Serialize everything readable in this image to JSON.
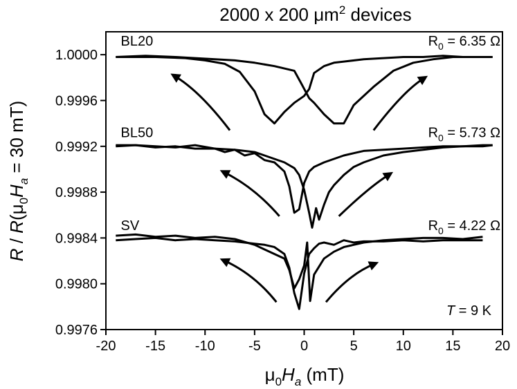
{
  "chart_data": {
    "type": "line",
    "title": "2000 x 200 μm",
    "title_superscript": "2",
    "title_suffix": " devices",
    "xlabel": "μ",
    "xlabel_sub": "0",
    "xlabel_italic": "H",
    "xlabel_italic_sub": "a",
    "xlabel_tail": " (mT)",
    "ylabel": "R / R(μ0Ha = 30 mT)",
    "xlim": [
      -20,
      20
    ],
    "ylim": [
      0.9976,
      1.0002
    ],
    "xticks": [
      -20,
      -15,
      -10,
      -5,
      0,
      5,
      10,
      15,
      20
    ],
    "yticks": [
      "0.9976",
      "0.9980",
      "0.9984",
      "0.9988",
      "0.9992",
      "0.9996",
      "1.0000"
    ],
    "grid": false,
    "labels": [
      {
        "text": "BL20",
        "x": -18.5,
        "y": 1.00008
      },
      {
        "text": "BL50",
        "x": -18.5,
        "y": 0.99928
      },
      {
        "text": "SV",
        "x": -18.5,
        "y": 0.99847
      }
    ],
    "r0_labels": [
      {
        "sub": "0",
        "value": " = 6.35 Ω",
        "x": 12.5,
        "y": 1.00008
      },
      {
        "sub": "0",
        "value": " = 5.73 Ω",
        "x": 12.5,
        "y": 0.99928
      },
      {
        "sub": "0",
        "value": " = 4.22 Ω",
        "x": 12.5,
        "y": 0.99847
      }
    ],
    "temperature_label": {
      "italic": "T",
      "text": " = 9 K"
    },
    "series": [
      {
        "x": [
          -19,
          -15,
          -12,
          -10,
          -8,
          -6.5,
          -5,
          -4,
          -3,
          -2,
          -1,
          0,
          0.5,
          1,
          2,
          3,
          4,
          6,
          8,
          10,
          12,
          14,
          16,
          18,
          19
        ],
        "y": [
          0.99998,
          0.99998,
          0.99997,
          0.99995,
          0.99992,
          0.99985,
          0.99968,
          0.99948,
          0.9994,
          0.9995,
          0.99958,
          0.99964,
          0.9997,
          0.99984,
          0.9999,
          0.99993,
          0.99994,
          0.99996,
          0.99997,
          0.99998,
          0.99998,
          0.99999,
          0.99998,
          0.99998,
          0.99998
        ]
      },
      {
        "x": [
          -19,
          -16,
          -13,
          -11,
          -9,
          -7,
          -5,
          -3,
          -1,
          -0.3,
          0.5,
          1,
          2,
          3,
          4,
          5,
          7,
          9,
          11,
          13,
          15,
          17,
          19
        ],
        "y": [
          0.99998,
          0.99999,
          0.99998,
          0.99997,
          0.99996,
          0.99995,
          0.99993,
          0.9999,
          0.99986,
          0.99975,
          0.99962,
          0.99958,
          0.99948,
          0.9994,
          0.9994,
          0.99956,
          0.99972,
          0.99986,
          0.99993,
          0.99996,
          0.99998,
          0.99998,
          0.99998
        ]
      },
      {
        "x": [
          -19,
          -17,
          -15,
          -13,
          -11,
          -9,
          -8,
          -7,
          -6,
          -5,
          -4,
          -3,
          -2,
          -1.5,
          -1,
          -0.5,
          0,
          0.5,
          1,
          2,
          3,
          4,
          5,
          6,
          8,
          10,
          12,
          14,
          16,
          18,
          19
        ],
        "y": [
          0.99921,
          0.99921,
          0.9992,
          0.99919,
          0.99921,
          0.99918,
          0.99915,
          0.99917,
          0.99912,
          0.99914,
          0.99908,
          0.99906,
          0.99898,
          0.99885,
          0.99862,
          0.99865,
          0.99888,
          0.99898,
          0.99902,
          0.99906,
          0.99909,
          0.99912,
          0.99914,
          0.99916,
          0.99917,
          0.99918,
          0.99919,
          0.9992,
          0.9992,
          0.99921,
          0.99921
        ]
      },
      {
        "x": [
          -19,
          -17,
          -15,
          -13,
          -11,
          -9,
          -7,
          -5,
          -4,
          -3,
          -2,
          -1,
          -0.5,
          0,
          0.5,
          0.8,
          1.2,
          1.5,
          2,
          2.5,
          3,
          4,
          5,
          6,
          7,
          8,
          10,
          12,
          14,
          16,
          18,
          19
        ],
        "y": [
          0.9992,
          0.99921,
          0.99919,
          0.9992,
          0.99918,
          0.99918,
          0.99917,
          0.99915,
          0.99912,
          0.99909,
          0.99906,
          0.99901,
          0.99895,
          0.99882,
          0.99862,
          0.99849,
          0.99866,
          0.99856,
          0.99869,
          0.9988,
          0.99886,
          0.99895,
          0.99902,
          0.99906,
          0.99909,
          0.99912,
          0.99915,
          0.99917,
          0.99919,
          0.9992,
          0.9992,
          0.99921
        ]
      },
      {
        "x": [
          -19,
          -17,
          -15,
          -13,
          -11,
          -9,
          -7,
          -5,
          -4,
          -3,
          -2,
          -1.5,
          -1,
          -0.5,
          0,
          0.3,
          0.6,
          1,
          1.5,
          2,
          3,
          4,
          5,
          6,
          7,
          8,
          10,
          12,
          14,
          16,
          18
        ],
        "y": [
          0.99842,
          0.99843,
          0.99841,
          0.99842,
          0.9984,
          0.99841,
          0.99839,
          0.99834,
          0.9983,
          0.99826,
          0.99822,
          0.99812,
          0.99796,
          0.99804,
          0.99816,
          0.99836,
          0.99785,
          0.99808,
          0.99815,
          0.99822,
          0.99828,
          0.99832,
          0.99834,
          0.99836,
          0.99837,
          0.99838,
          0.99839,
          0.9984,
          0.9984,
          0.99839,
          0.99841
        ]
      },
      {
        "x": [
          -19,
          -17,
          -15,
          -13,
          -11,
          -9,
          -7,
          -5,
          -4,
          -3,
          -2,
          -1.5,
          -1,
          -0.5,
          0,
          0.5,
          1,
          1.5,
          2,
          3,
          4,
          5,
          6,
          8,
          10,
          12,
          14,
          16,
          18
        ],
        "y": [
          0.99838,
          0.99839,
          0.9984,
          0.99838,
          0.99839,
          0.99838,
          0.99837,
          0.99835,
          0.99834,
          0.99832,
          0.99826,
          0.99814,
          0.99792,
          0.99778,
          0.99809,
          0.99826,
          0.99831,
          0.99835,
          0.99836,
          0.99834,
          0.99838,
          0.99836,
          0.99837,
          0.99837,
          0.99838,
          0.99837,
          0.99838,
          0.99838,
          0.99838
        ]
      }
    ],
    "arrows": [
      [
        [
          -7.5,
          0.99934
        ],
        [
          -10.5,
          0.99968
        ],
        [
          -13,
          0.99981
        ]
      ],
      [
        [
          7.0,
          0.99934
        ],
        [
          10,
          0.99968
        ],
        [
          12,
          0.99979
        ]
      ],
      [
        [
          -2.5,
          0.99859
        ],
        [
          -5,
          0.99884
        ],
        [
          -8,
          0.99897
        ]
      ],
      [
        [
          3.5,
          0.99859
        ],
        [
          6.5,
          0.99884
        ],
        [
          8.5,
          0.99895
        ]
      ],
      [
        [
          -2.8,
          0.99784
        ],
        [
          -5,
          0.99808
        ],
        [
          -8,
          0.9982
        ]
      ],
      [
        [
          2.2,
          0.99784
        ],
        [
          4.5,
          0.99808
        ],
        [
          7,
          0.99817
        ]
      ]
    ]
  }
}
